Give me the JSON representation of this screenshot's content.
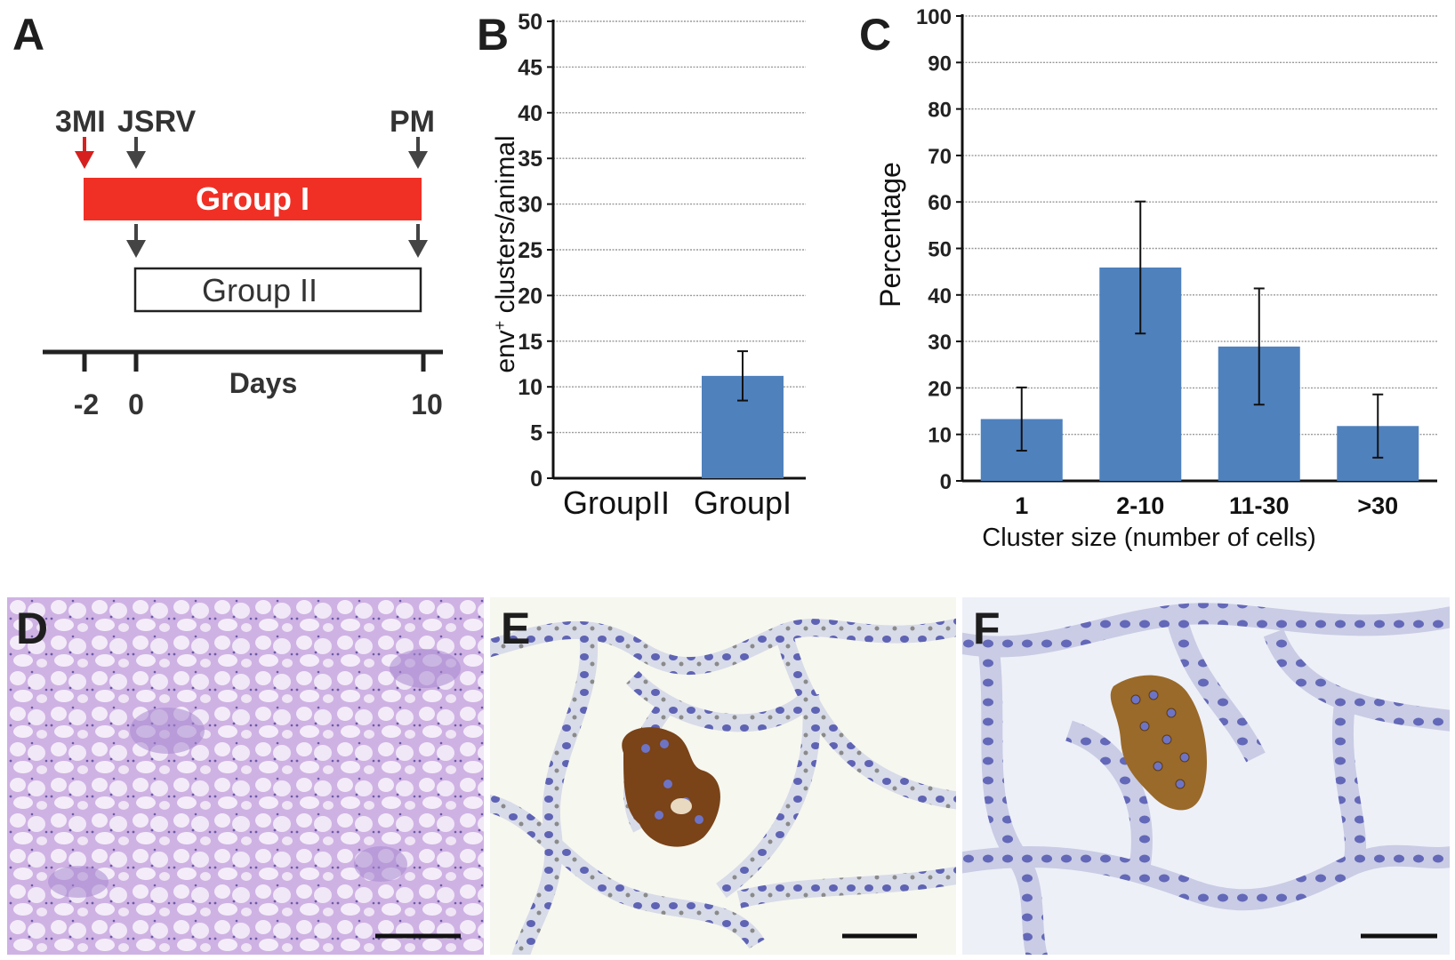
{
  "panels": {
    "a": "A",
    "b": "B",
    "c": "C",
    "d": "D",
    "e": "E",
    "f": "F"
  },
  "timeline": {
    "markers": {
      "mi": "3MI",
      "jsrv": "JSRV",
      "pm": "PM"
    },
    "group1": "Group I",
    "group2": "Group II",
    "axis_label": "Days",
    "ticks": [
      "-2",
      "0",
      "10"
    ],
    "colors": {
      "group1": "#f03025",
      "mi_arrow": "#d6201f",
      "arrow": "#444444"
    }
  },
  "chart_data": [
    {
      "type": "bar",
      "categories": [
        "GroupII",
        "GroupI"
      ],
      "values": [
        0,
        11.2
      ],
      "error": [
        0,
        2.7
      ],
      "ylabel_main": "env",
      "ylabel_sup": "+",
      "ylabel_rest": " clusters/animal",
      "ylim": [
        0,
        50
      ],
      "yticks": [
        0,
        5,
        10,
        15,
        20,
        25,
        30,
        35,
        40,
        45,
        50
      ],
      "grid": true,
      "color": "#4f81bd"
    },
    {
      "type": "bar",
      "categories": [
        "1",
        "2-10",
        "11-30",
        ">30"
      ],
      "values": [
        13.3,
        45.9,
        28.9,
        11.8
      ],
      "error": [
        6.8,
        14.2,
        12.5,
        6.8
      ],
      "ylabel": "Percentage",
      "xlabel": "Cluster  size (number of cells)",
      "ylim": [
        0,
        100
      ],
      "yticks": [
        0,
        10,
        20,
        30,
        40,
        50,
        60,
        70,
        80,
        90,
        100
      ],
      "grid": true,
      "color": "#4f81bd"
    }
  ],
  "micrographs": {
    "d_bg": "#dcc4ee",
    "e_bg": "#f6f7ef",
    "f_bg": "#eef0f8",
    "stain_brown": "#7a4318",
    "nuclei_blue": "#5e63b4"
  }
}
